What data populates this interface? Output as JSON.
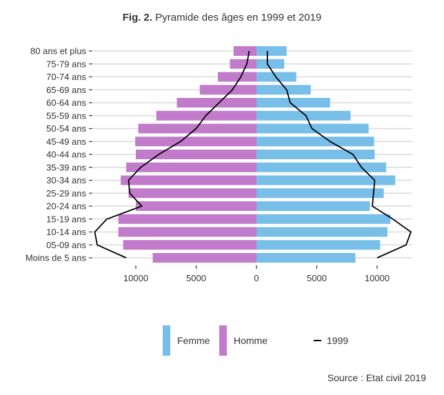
{
  "title": {
    "fig": "Fig. 2.",
    "text": " Pyramide des âges en 1999 et 2019"
  },
  "source": "Source : Etat civil 2019",
  "legend": {
    "femme": "Femme",
    "homme": "Homme",
    "line": "1999"
  },
  "colors": {
    "femme": "#77bfe8",
    "homme": "#c27bcb",
    "line": "#000000",
    "grid": "#d9d9d9"
  },
  "chart_data": {
    "type": "bar",
    "orientation": "horizontal-pyramid",
    "categories": [
      "80 ans et plus",
      "75-79 ans",
      "70-74 ans",
      "65-69 ans",
      "60-64 ans",
      "55-59 ans",
      "50-54 ans",
      "45-49 ans",
      "40-44 ans",
      "35-39 ans",
      "30-34 ans",
      "25-29 ans",
      "20-24 ans",
      "15-19 ans",
      "10-14 ans",
      "05-09 ans",
      "Moins de 5 ans"
    ],
    "series": [
      {
        "name": "Femme",
        "values": [
          2500,
          2300,
          3300,
          4500,
          6100,
          7800,
          9300,
          9750,
          9800,
          10750,
          11500,
          10550,
          9400,
          11100,
          10850,
          10250,
          8200
        ]
      },
      {
        "name": "Homme",
        "values": [
          1900,
          2200,
          3200,
          4700,
          6600,
          8300,
          9800,
          10050,
          10000,
          10800,
          11250,
          10600,
          10000,
          11450,
          11450,
          11050,
          8600
        ]
      }
    ],
    "line_1999": {
      "name": "1999",
      "femme": [
        900,
        900,
        1600,
        2500,
        2800,
        4100,
        4600,
        6100,
        8000,
        8700,
        9800,
        9700,
        9600,
        11300,
        12800,
        12400,
        10000
      ],
      "homme": [
        600,
        800,
        1300,
        2000,
        3100,
        4200,
        5000,
        6300,
        8100,
        9600,
        10600,
        10500,
        9500,
        12400,
        13400,
        13200,
        10800
      ]
    },
    "x_ticks": [
      -10000,
      -5000,
      0,
      5000,
      10000
    ],
    "x_tick_labels": [
      "10000",
      "5000",
      "0",
      "5000",
      "10000"
    ],
    "xlim": [
      -13500,
      12700
    ],
    "xlabel": "",
    "ylabel": "",
    "grid": true,
    "legend_position": "bottom"
  }
}
